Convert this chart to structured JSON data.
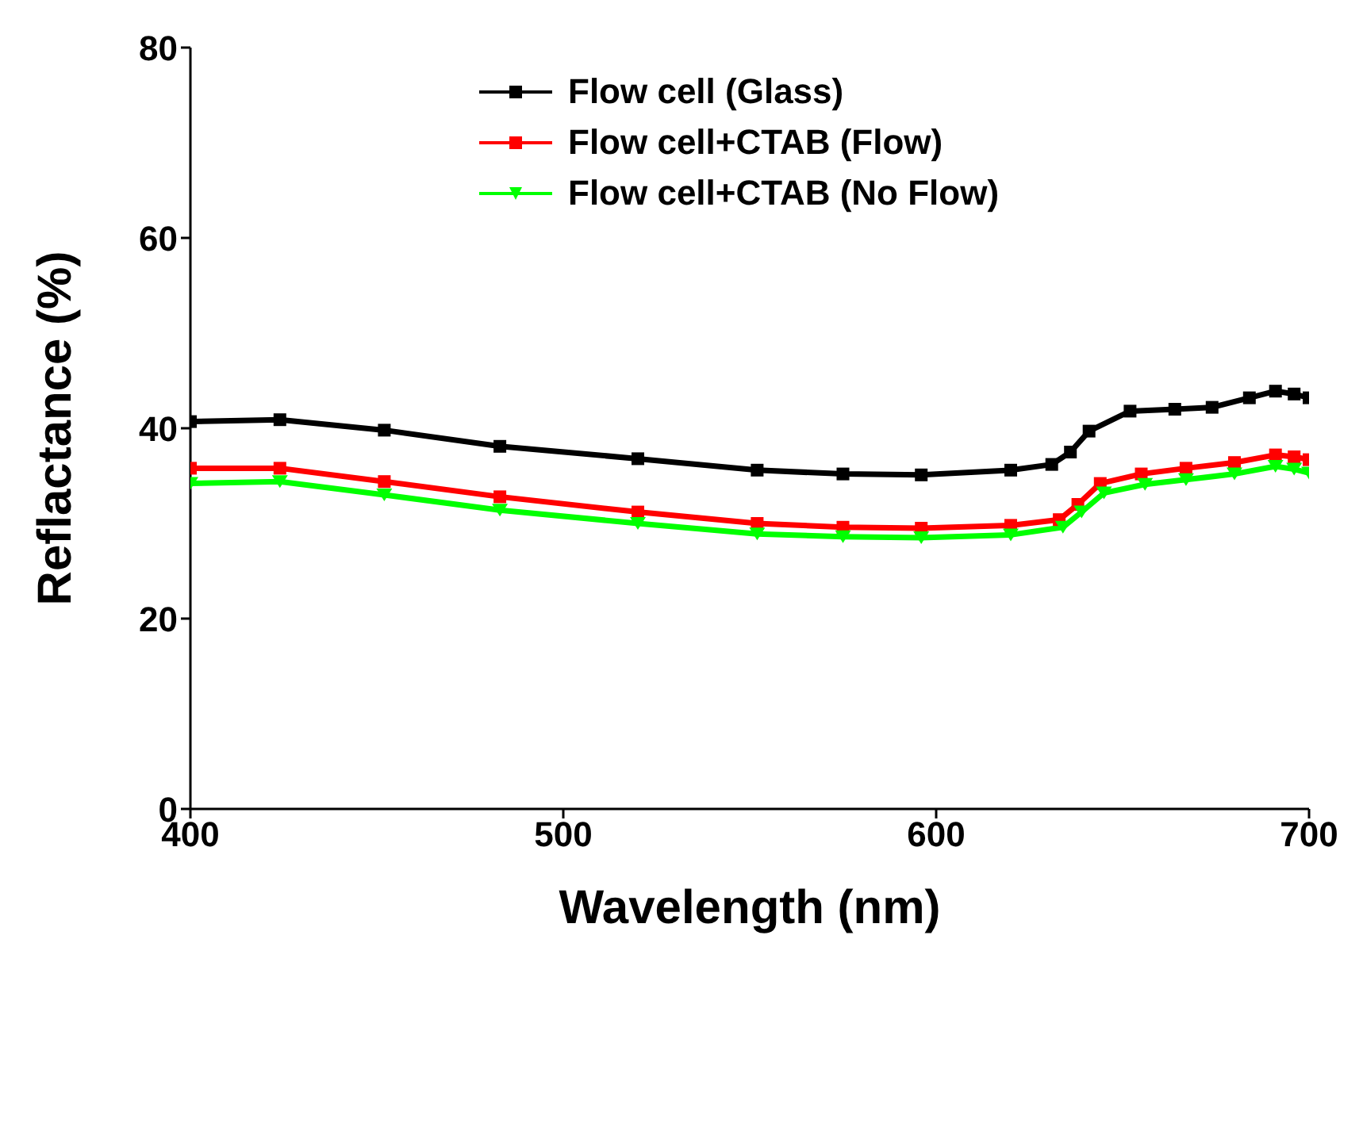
{
  "chart_data": {
    "type": "line",
    "xlabel": "Wavelength (nm)",
    "ylabel": "Reflactance (%)",
    "xlim": [
      400,
      700
    ],
    "xticks": [
      400,
      500,
      600,
      {
        "value": 700,
        "label": "700"
      }
    ],
    "ylim": [
      0,
      80
    ],
    "yticks": [
      0,
      20,
      40,
      60,
      80
    ],
    "grid": false,
    "legend": "top right",
    "line_style": "solid",
    "series": [
      {
        "name": "Flow cell (Glass)",
        "color": "#000000",
        "marker": "square",
        "x": [
          400,
          424,
          452,
          483,
          520,
          552,
          575,
          596,
          620,
          631,
          636,
          641,
          652,
          664,
          674,
          684,
          691,
          696,
          700
        ],
        "values": [
          40.7,
          40.9,
          39.8,
          38.1,
          36.8,
          35.6,
          35.2,
          35.1,
          35.6,
          36.2,
          37.5,
          39.7,
          41.8,
          42.0,
          42.2,
          43.2,
          43.9,
          43.6,
          43.2
        ]
      },
      {
        "name": "Flow cell+CTAB (Flow)",
        "color": "#ff0000",
        "marker": "square",
        "x": [
          400,
          424,
          452,
          483,
          520,
          552,
          575,
          596,
          620,
          633,
          638,
          644,
          655,
          667,
          680,
          691,
          696,
          700
        ],
        "values": [
          35.8,
          35.8,
          34.4,
          32.8,
          31.2,
          30.0,
          29.6,
          29.5,
          29.8,
          30.4,
          32.0,
          34.2,
          35.2,
          35.8,
          36.4,
          37.2,
          37.0,
          36.7
        ]
      },
      {
        "name": "Flow cell+CTAB (No Flow)",
        "color": "#00ff00",
        "marker": "triangle",
        "x": [
          400,
          424,
          452,
          483,
          520,
          552,
          575,
          596,
          620,
          634,
          639,
          645,
          656,
          667,
          680,
          691,
          696,
          700
        ],
        "values": [
          34.2,
          34.4,
          33.0,
          31.4,
          30.0,
          28.9,
          28.6,
          28.5,
          28.8,
          29.6,
          31.2,
          33.2,
          34.1,
          34.6,
          35.2,
          36.0,
          35.7,
          35.3
        ]
      }
    ]
  }
}
